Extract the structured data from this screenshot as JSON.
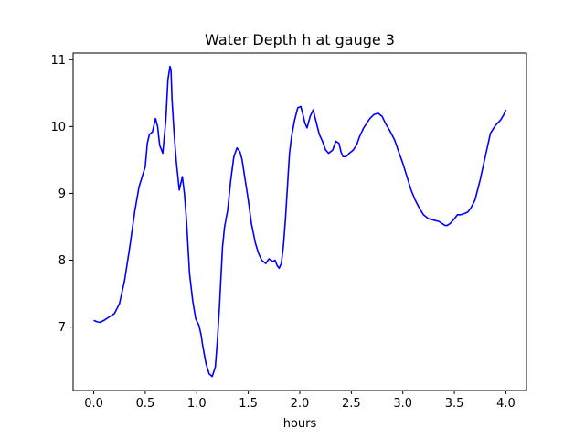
{
  "chart_data": {
    "type": "line",
    "title": "Water Depth h at gauge 3",
    "xlabel": "hours",
    "ylabel": "",
    "xlim": [
      -0.2,
      4.2
    ],
    "ylim": [
      6.05,
      11.1
    ],
    "xticks": [
      0.0,
      0.5,
      1.0,
      1.5,
      2.0,
      2.5,
      3.0,
      3.5,
      4.0
    ],
    "xtick_labels": [
      "0.0",
      "0.5",
      "1.0",
      "1.5",
      "2.0",
      "2.5",
      "3.0",
      "3.5",
      "4.0"
    ],
    "yticks": [
      7,
      8,
      9,
      10,
      11
    ],
    "ytick_labels": [
      "7",
      "8",
      "9",
      "10",
      "11"
    ],
    "grid": false,
    "series": [
      {
        "color": "#0000ff",
        "x": [
          0.0,
          0.03,
          0.06,
          0.1,
          0.15,
          0.2,
          0.25,
          0.3,
          0.35,
          0.4,
          0.44,
          0.48,
          0.5,
          0.52,
          0.54,
          0.57,
          0.6,
          0.62,
          0.64,
          0.67,
          0.7,
          0.72,
          0.74,
          0.75,
          0.76,
          0.78,
          0.8,
          0.83,
          0.86,
          0.88,
          0.9,
          0.93,
          0.96,
          0.99,
          1.02,
          1.04,
          1.06,
          1.09,
          1.12,
          1.15,
          1.18,
          1.2,
          1.22,
          1.25,
          1.27,
          1.3,
          1.33,
          1.36,
          1.39,
          1.42,
          1.44,
          1.47,
          1.5,
          1.53,
          1.57,
          1.6,
          1.63,
          1.67,
          1.7,
          1.72,
          1.74,
          1.76,
          1.78,
          1.8,
          1.82,
          1.84,
          1.86,
          1.88,
          1.9,
          1.92,
          1.95,
          1.98,
          2.01,
          2.03,
          2.05,
          2.07,
          2.1,
          2.13,
          2.15,
          2.17,
          2.19,
          2.22,
          2.25,
          2.28,
          2.32,
          2.35,
          2.38,
          2.4,
          2.42,
          2.45,
          2.48,
          2.52,
          2.55,
          2.58,
          2.62,
          2.65,
          2.68,
          2.72,
          2.76,
          2.8,
          2.83,
          2.85,
          2.88,
          2.92,
          2.96,
          3.0,
          3.04,
          3.08,
          3.12,
          3.16,
          3.2,
          3.25,
          3.3,
          3.35,
          3.38,
          3.41,
          3.43,
          3.46,
          3.5,
          3.53,
          3.56,
          3.6,
          3.63,
          3.66,
          3.7,
          3.75,
          3.8,
          3.85,
          3.9,
          3.95,
          3.98,
          4.0
        ],
        "y": [
          7.1,
          7.08,
          7.07,
          7.1,
          7.15,
          7.2,
          7.35,
          7.7,
          8.2,
          8.75,
          9.1,
          9.3,
          9.4,
          9.75,
          9.88,
          9.92,
          10.12,
          10.0,
          9.72,
          9.6,
          10.1,
          10.7,
          10.9,
          10.85,
          10.4,
          9.9,
          9.5,
          9.05,
          9.25,
          9.0,
          8.6,
          7.8,
          7.4,
          7.12,
          7.03,
          6.9,
          6.7,
          6.45,
          6.3,
          6.26,
          6.4,
          6.8,
          7.3,
          8.2,
          8.5,
          8.75,
          9.2,
          9.55,
          9.68,
          9.62,
          9.5,
          9.2,
          8.9,
          8.55,
          8.25,
          8.1,
          8.0,
          7.95,
          8.02,
          8.0,
          7.98,
          8.0,
          7.92,
          7.88,
          7.95,
          8.2,
          8.6,
          9.1,
          9.6,
          9.85,
          10.1,
          10.28,
          10.3,
          10.18,
          10.05,
          9.98,
          10.15,
          10.25,
          10.12,
          10.0,
          9.88,
          9.78,
          9.65,
          9.6,
          9.65,
          9.78,
          9.75,
          9.62,
          9.55,
          9.55,
          9.6,
          9.65,
          9.72,
          9.85,
          9.98,
          10.05,
          10.12,
          10.18,
          10.2,
          10.15,
          10.05,
          10.0,
          9.92,
          9.8,
          9.62,
          9.45,
          9.25,
          9.05,
          8.9,
          8.78,
          8.68,
          8.62,
          8.6,
          8.58,
          8.55,
          8.52,
          8.52,
          8.55,
          8.62,
          8.68,
          8.68,
          8.7,
          8.72,
          8.78,
          8.9,
          9.2,
          9.55,
          9.9,
          10.02,
          10.1,
          10.18,
          10.25
        ]
      }
    ]
  }
}
